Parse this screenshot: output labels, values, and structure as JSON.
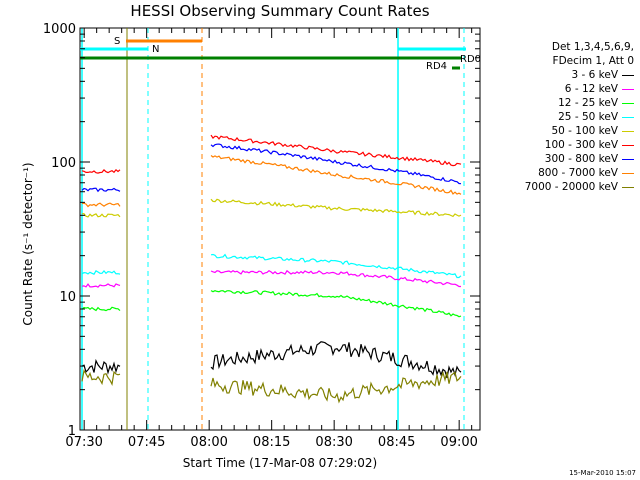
{
  "chart_data": {
    "type": "line",
    "title": "HESSI Observing Summary Count Rates",
    "xlabel": "Start Time (17-Mar-08 07:29:02)",
    "ylabel": "Count Rate (s⁻¹ detector⁻¹)",
    "yscale": "log",
    "ylim": [
      1,
      1000
    ],
    "y_ticks": [
      "1",
      "10",
      "100",
      "1000"
    ],
    "xlim_minutes": [
      0,
      96
    ],
    "x_ticks": [
      "07:30",
      "07:45",
      "08:00",
      "08:15",
      "08:30",
      "08:45",
      "09:00"
    ],
    "legend_header": [
      "Det 1,3,4,5,6,9,",
      "FDecim 1, Att 0"
    ],
    "legend_position": "right",
    "series": [
      {
        "name": "3 - 6 keV",
        "color": "#000000",
        "orbit1": 3,
        "orbit2_start": 3.2,
        "orbit2_mid": 4.2,
        "orbit2_end": 2.6
      },
      {
        "name": "6 - 12 keV",
        "color": "#ff00ff",
        "orbit1": 12,
        "orbit2_start": 15,
        "orbit2_mid": 15,
        "orbit2_end": 12
      },
      {
        "name": "12 - 25 keV",
        "color": "#00ff00",
        "orbit1": 8,
        "orbit2_start": 11,
        "orbit2_mid": 10,
        "orbit2_end": 7
      },
      {
        "name": "25 - 50 keV",
        "color": "#00ffff",
        "orbit1": 15,
        "orbit2_start": 20,
        "orbit2_mid": 18,
        "orbit2_end": 14
      },
      {
        "name": "50 - 100 keV",
        "color": "#cccc00",
        "orbit1": 40,
        "orbit2_start": 52,
        "orbit2_mid": 45,
        "orbit2_end": 40
      },
      {
        "name": "100 - 300 keV",
        "color": "#ff0000",
        "orbit1": 85,
        "orbit2_start": 155,
        "orbit2_mid": 120,
        "orbit2_end": 95
      },
      {
        "name": "300 - 800 keV",
        "color": "#0000ff",
        "orbit1": 62,
        "orbit2_start": 135,
        "orbit2_mid": 100,
        "orbit2_end": 70
      },
      {
        "name": "800 - 7000 keV",
        "color": "#ff8000",
        "orbit1": 48,
        "orbit2_start": 110,
        "orbit2_mid": 80,
        "orbit2_end": 58
      },
      {
        "name": "7000 - 20000 keV",
        "color": "#808000",
        "orbit1": 2.5,
        "orbit2_start": 2.2,
        "orbit2_mid": 1.8,
        "orbit2_end": 2.5
      }
    ],
    "annotations": {
      "saa_label": "S",
      "night_label": "N",
      "rd0_label": "RD0",
      "rd4_label": "RD4"
    },
    "timestamp": "15-Mar-2010 15:07"
  }
}
